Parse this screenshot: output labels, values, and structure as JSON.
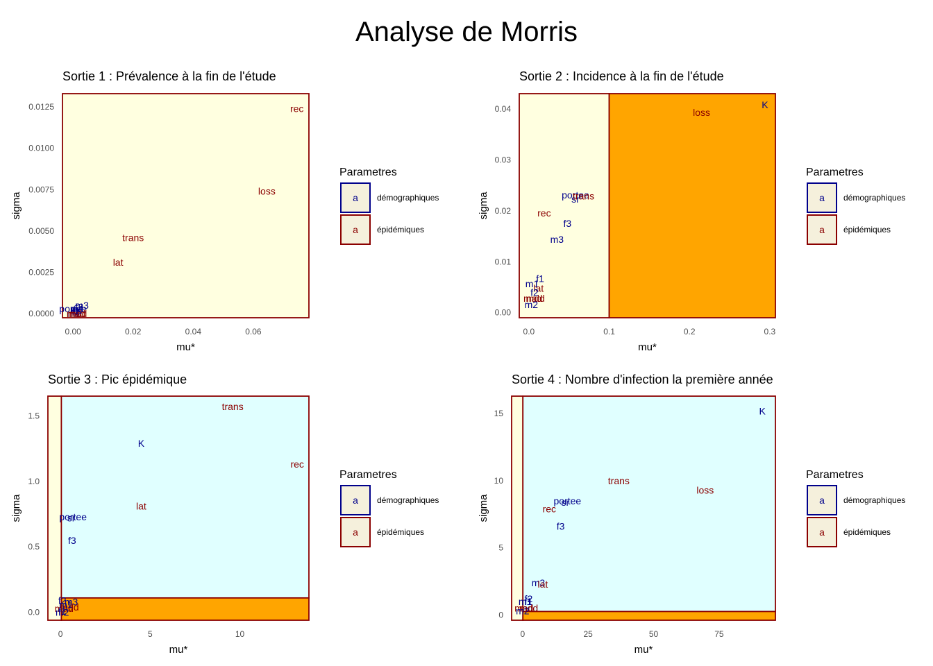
{
  "title": "Analyse de Morris",
  "colors": {
    "demo": "#00008B",
    "epi": "#8B0000",
    "zone_light": "#FFFFE0",
    "zone_orange": "#FFA500",
    "zone_cyan": "#E0FFFF",
    "legend_fill": "#F5F0DC"
  },
  "legend": {
    "title": "Parametres",
    "key_text": "a",
    "items": [
      {
        "label": "démographiques",
        "group": "demo"
      },
      {
        "label": "épidémiques",
        "group": "epi"
      }
    ]
  },
  "chart_data": [
    {
      "type": "scatter",
      "title": "Sortie 1 : Prévalence à la fin de l'étude",
      "xlabel": "mu*",
      "ylabel": "sigma",
      "xlim": [
        -0.0035,
        0.0785
      ],
      "ylim": [
        -0.00025,
        0.0133
      ],
      "xticks": [
        0.0,
        0.02,
        0.04,
        0.06
      ],
      "xtick_labels": [
        "0.00",
        "0.02",
        "0.04",
        "0.06"
      ],
      "yticks": [
        0.0,
        0.0025,
        0.005,
        0.0075,
        0.01,
        0.0125
      ],
      "ytick_labels": [
        "0.0000",
        "0.0025",
        "0.0050",
        "0.0075",
        "0.0100",
        "0.0125"
      ],
      "zones": [
        {
          "x0": -0.0035,
          "x1": 0.0785,
          "y0": -0.00025,
          "y1": 0.0133,
          "fill": "zone_light"
        }
      ],
      "points": [
        {
          "label": "rec",
          "x": 0.0745,
          "y": 0.0124,
          "group": "epi"
        },
        {
          "label": "loss",
          "x": 0.0645,
          "y": 0.0074,
          "group": "epi"
        },
        {
          "label": "trans",
          "x": 0.02,
          "y": 0.0046,
          "group": "epi"
        },
        {
          "label": "lat",
          "x": 0.015,
          "y": 0.0031,
          "group": "epi"
        },
        {
          "label": "m3",
          "x": 0.003,
          "y": 0.0005,
          "group": "demo"
        },
        {
          "label": "f3",
          "x": 0.002,
          "y": 0.0004,
          "group": "demo"
        },
        {
          "label": "m1",
          "x": 0.0015,
          "y": 0.0003,
          "group": "demo"
        },
        {
          "label": "f1",
          "x": 0.001,
          "y": 0.0002,
          "group": "demo"
        },
        {
          "label": "portee",
          "x": 0.0,
          "y": 0.0003,
          "group": "demo"
        },
        {
          "label": "sr",
          "x": 0.0005,
          "y": 0.0002,
          "group": "demo"
        },
        {
          "label": "m2",
          "x": 0.0005,
          "y": 0.0,
          "group": "demo"
        },
        {
          "label": "f2",
          "x": 0.001,
          "y": 0.0001,
          "group": "demo"
        },
        {
          "label": "mad",
          "x": 0.001,
          "y": 0.0,
          "group": "epi"
        },
        {
          "label": "mdd",
          "x": 0.0015,
          "y": 0.0,
          "group": "epi"
        },
        {
          "label": "K",
          "x": 0.002,
          "y": 0.0002,
          "group": "demo"
        }
      ]
    },
    {
      "type": "scatter",
      "title": "Sortie 2 : Incidence à la fin de l'étude",
      "xlabel": "mu*",
      "ylabel": "sigma",
      "xlim": [
        -0.012,
        0.307
      ],
      "ylim": [
        -0.001,
        0.043
      ],
      "xticks": [
        0.0,
        0.1,
        0.2,
        0.3
      ],
      "xtick_labels": [
        "0.0",
        "0.1",
        "0.2",
        "0.3"
      ],
      "yticks": [
        0.0,
        0.01,
        0.02,
        0.03,
        0.04
      ],
      "ytick_labels": [
        "0.00",
        "0.01",
        "0.02",
        "0.03",
        "0.04"
      ],
      "zones": [
        {
          "x0": -0.012,
          "x1": 0.1,
          "y0": -0.001,
          "y1": 0.043,
          "fill": "zone_light"
        },
        {
          "x0": 0.1,
          "x1": 0.307,
          "y0": -0.001,
          "y1": 0.043,
          "fill": "zone_orange"
        }
      ],
      "points": [
        {
          "label": "K",
          "x": 0.294,
          "y": 0.0408,
          "group": "demo"
        },
        {
          "label": "loss",
          "x": 0.215,
          "y": 0.0393,
          "group": "epi"
        },
        {
          "label": "portee",
          "x": 0.058,
          "y": 0.0231,
          "group": "demo"
        },
        {
          "label": "trans",
          "x": 0.068,
          "y": 0.0229,
          "group": "epi"
        },
        {
          "label": "sr",
          "x": 0.058,
          "y": 0.0223,
          "group": "demo"
        },
        {
          "label": "rec",
          "x": 0.019,
          "y": 0.0196,
          "group": "epi"
        },
        {
          "label": "f3",
          "x": 0.048,
          "y": 0.0175,
          "group": "demo"
        },
        {
          "label": "m3",
          "x": 0.035,
          "y": 0.0144,
          "group": "demo"
        },
        {
          "label": "f1",
          "x": 0.014,
          "y": 0.0067,
          "group": "demo"
        },
        {
          "label": "m1",
          "x": 0.004,
          "y": 0.0057,
          "group": "demo"
        },
        {
          "label": "lat",
          "x": 0.012,
          "y": 0.0048,
          "group": "epi"
        },
        {
          "label": "f2",
          "x": 0.007,
          "y": 0.004,
          "group": "demo"
        },
        {
          "label": "mad",
          "x": 0.005,
          "y": 0.0028,
          "group": "epi"
        },
        {
          "label": "mdd",
          "x": 0.008,
          "y": 0.0028,
          "group": "epi"
        },
        {
          "label": "m2",
          "x": 0.003,
          "y": 0.0016,
          "group": "demo"
        }
      ]
    },
    {
      "type": "scatter",
      "title": "Sortie 3 : Pic épidémique",
      "xlabel": "mu*",
      "ylabel": "sigma",
      "xlim": [
        -0.7,
        13.85
      ],
      "ylim": [
        -0.06,
        1.65
      ],
      "xticks": [
        0,
        5,
        10
      ],
      "xtick_labels": [
        "0",
        "5",
        "10"
      ],
      "yticks": [
        0.0,
        0.5,
        1.0,
        1.5
      ],
      "ytick_labels": [
        "0.0",
        "0.5",
        "1.0",
        "1.5"
      ],
      "zones": [
        {
          "x0": -0.7,
          "x1": 0.05,
          "y0": -0.06,
          "y1": 1.65,
          "fill": "zone_light"
        },
        {
          "x0": 0.05,
          "x1": 13.85,
          "y0": 0.11,
          "y1": 1.65,
          "fill": "zone_cyan"
        },
        {
          "x0": 0.05,
          "x1": 13.85,
          "y0": -0.06,
          "y1": 0.11,
          "fill": "zone_orange"
        }
      ],
      "points": [
        {
          "label": "trans",
          "x": 9.6,
          "y": 1.57,
          "group": "epi"
        },
        {
          "label": "K",
          "x": 4.5,
          "y": 1.29,
          "group": "demo"
        },
        {
          "label": "rec",
          "x": 13.2,
          "y": 1.13,
          "group": "epi"
        },
        {
          "label": "lat",
          "x": 4.5,
          "y": 0.81,
          "group": "epi"
        },
        {
          "label": "portee",
          "x": 0.7,
          "y": 0.73,
          "group": "demo"
        },
        {
          "label": "sr",
          "x": 0.6,
          "y": 0.72,
          "group": "demo"
        },
        {
          "label": "f3",
          "x": 0.65,
          "y": 0.55,
          "group": "demo"
        },
        {
          "label": "f2",
          "x": 0.1,
          "y": 0.09,
          "group": "demo"
        },
        {
          "label": "m3",
          "x": 0.6,
          "y": 0.08,
          "group": "demo"
        },
        {
          "label": "mad",
          "x": 0.2,
          "y": 0.03,
          "group": "epi"
        },
        {
          "label": "mdd",
          "x": 0.5,
          "y": 0.04,
          "group": "epi"
        },
        {
          "label": "m1",
          "x": 0.3,
          "y": 0.06,
          "group": "demo"
        },
        {
          "label": "f1",
          "x": 0.1,
          "y": 0.01,
          "group": "demo"
        },
        {
          "label": "m2",
          "x": 0.1,
          "y": 0.0,
          "group": "demo"
        }
      ]
    },
    {
      "type": "scatter",
      "title": "Sortie 4 : Nombre d'infection la première année",
      "xlabel": "mu*",
      "ylabel": "sigma",
      "xlim": [
        -4.2,
        96.5
      ],
      "ylim": [
        -0.4,
        16.3
      ],
      "xticks": [
        0,
        25,
        50,
        75
      ],
      "xtick_labels": [
        "0",
        "25",
        "50",
        "75"
      ],
      "yticks": [
        0,
        5,
        10,
        15
      ],
      "ytick_labels": [
        "0",
        "5",
        "10",
        "15"
      ],
      "zones": [
        {
          "x0": -4.2,
          "x1": 0.1,
          "y0": -0.4,
          "y1": 16.3,
          "fill": "zone_light"
        },
        {
          "x0": 0.1,
          "x1": 96.5,
          "y0": 0.25,
          "y1": 16.3,
          "fill": "zone_cyan"
        },
        {
          "x0": 0.1,
          "x1": 96.5,
          "y0": -0.4,
          "y1": 0.25,
          "fill": "zone_orange"
        }
      ],
      "points": [
        {
          "label": "K",
          "x": 91.5,
          "y": 15.2,
          "group": "demo"
        },
        {
          "label": "trans",
          "x": 36.7,
          "y": 10.0,
          "group": "epi"
        },
        {
          "label": "loss",
          "x": 69.7,
          "y": 9.3,
          "group": "epi"
        },
        {
          "label": "portee",
          "x": 17.1,
          "y": 8.5,
          "group": "demo"
        },
        {
          "label": "sr",
          "x": 16.3,
          "y": 8.4,
          "group": "demo"
        },
        {
          "label": "rec",
          "x": 10.2,
          "y": 7.9,
          "group": "epi"
        },
        {
          "label": "f3",
          "x": 14.5,
          "y": 6.6,
          "group": "demo"
        },
        {
          "label": "m3",
          "x": 6.0,
          "y": 2.4,
          "group": "demo"
        },
        {
          "label": "lat",
          "x": 7.7,
          "y": 2.3,
          "group": "epi"
        },
        {
          "label": "f2",
          "x": 2.3,
          "y": 1.2,
          "group": "demo"
        },
        {
          "label": "f1",
          "x": 2.3,
          "y": 1.0,
          "group": "demo"
        },
        {
          "label": "m1",
          "x": 1.0,
          "y": 1.0,
          "group": "demo"
        },
        {
          "label": "mad",
          "x": 0.5,
          "y": 0.5,
          "group": "epi"
        },
        {
          "label": "mdd",
          "x": 2.3,
          "y": 0.5,
          "group": "epi"
        },
        {
          "label": "m2",
          "x": 0.0,
          "y": 0.3,
          "group": "demo"
        }
      ]
    }
  ]
}
